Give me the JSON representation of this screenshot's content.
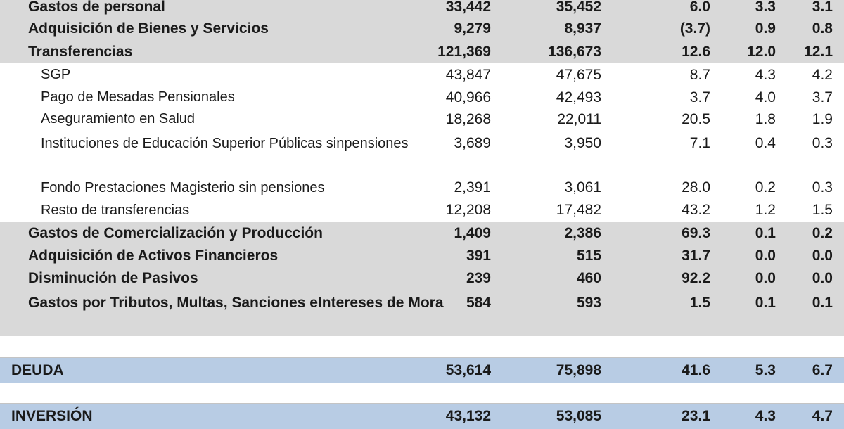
{
  "rows": [
    {
      "type": "main",
      "label": "Gastos de personal",
      "c1": "33,442",
      "c2": "35,452",
      "c3": "6.0",
      "c4": "3.3",
      "c5": "3.1"
    },
    {
      "type": "main",
      "label": "Adquisición de Bienes y Servicios",
      "c1": "9,279",
      "c2": "8,937",
      "c3": "(3.7)",
      "c4": "0.9",
      "c5": "0.8"
    },
    {
      "type": "main",
      "label": "Transferencias",
      "c1": "121,369",
      "c2": "136,673",
      "c3": "12.6",
      "c4": "12.0",
      "c5": "12.1"
    },
    {
      "type": "sub",
      "label": "SGP",
      "c1": "43,847",
      "c2": "47,675",
      "c3": "8.7",
      "c4": "4.3",
      "c5": "4.2"
    },
    {
      "type": "sub",
      "label": "Pago de Mesadas Pensionales",
      "c1": "40,966",
      "c2": "42,493",
      "c3": "3.7",
      "c4": "4.0",
      "c5": "3.7"
    },
    {
      "type": "sub",
      "label": "Aseguramiento en Salud",
      "c1": "18,268",
      "c2": "22,011",
      "c3": "20.5",
      "c4": "1.8",
      "c5": "1.9"
    },
    {
      "type": "sub",
      "label_l1": "Instituciones de Educación Superior Públicas sin",
      "label_l2": "pensiones",
      "c1": "3,689",
      "c2": "3,950",
      "c3": "7.1",
      "c4": "0.4",
      "c5": "0.3"
    },
    {
      "type": "sub",
      "label": "Fondo Prestaciones Magisterio sin pensiones",
      "c1": "2,391",
      "c2": "3,061",
      "c3": "28.0",
      "c4": "0.2",
      "c5": "0.3"
    },
    {
      "type": "sub",
      "label": "Resto de transferencias",
      "c1": "12,208",
      "c2": "17,482",
      "c3": "43.2",
      "c4": "1.2",
      "c5": "1.5"
    },
    {
      "type": "main",
      "label": "Gastos de Comercialización y Producción",
      "c1": "1,409",
      "c2": "2,386",
      "c3": "69.3",
      "c4": "0.1",
      "c5": "0.2"
    },
    {
      "type": "main",
      "label": "Adquisición de Activos Financieros",
      "c1": "391",
      "c2": "515",
      "c3": "31.7",
      "c4": "0.0",
      "c5": "0.0"
    },
    {
      "type": "main",
      "label": "Disminución de Pasivos",
      "c1": "239",
      "c2": "460",
      "c3": "92.2",
      "c4": "0.0",
      "c5": "0.0"
    },
    {
      "type": "main",
      "label_l1": "Gastos por Tributos, Multas, Sanciones e",
      "label_l2": "Intereses de Mora",
      "c1": "584",
      "c2": "593",
      "c3": "1.5",
      "c4": "0.1",
      "c5": "0.1"
    },
    {
      "type": "section",
      "label": "DEUDA",
      "c1": "53,614",
      "c2": "75,898",
      "c3": "41.6",
      "c4": "5.3",
      "c5": "6.7"
    },
    {
      "type": "section",
      "label": "INVERSIÓN",
      "c1": "43,132",
      "c2": "53,085",
      "c3": "23.1",
      "c4": "4.3",
      "c5": "4.7"
    }
  ]
}
